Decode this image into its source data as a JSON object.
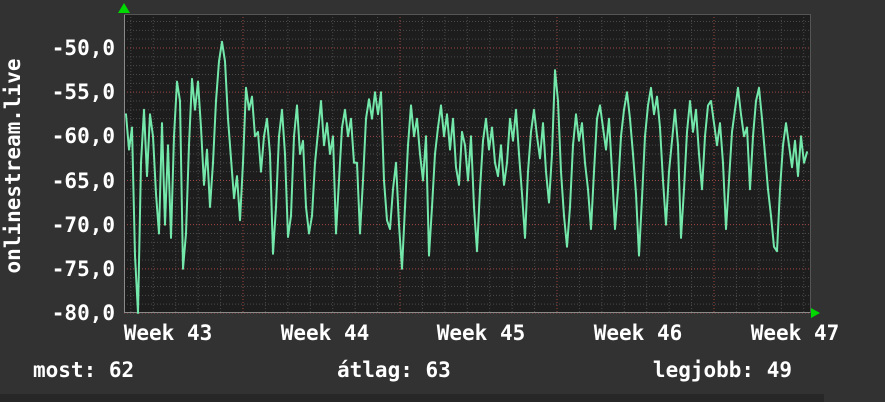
{
  "chart_data": {
    "type": "line",
    "title": "onlinestream.live",
    "ylim": [
      -80,
      -46.15
    ],
    "y_ticks": [
      {
        "value": -50,
        "label": "-50,0"
      },
      {
        "value": -55,
        "label": "-55,0"
      },
      {
        "value": -60,
        "label": "-60,0"
      },
      {
        "value": -65,
        "label": "-65,0"
      },
      {
        "value": -70,
        "label": "-70,0"
      },
      {
        "value": -75,
        "label": "-75,0"
      },
      {
        "value": -80,
        "label": "-80,0"
      }
    ],
    "x_ticks": [
      {
        "label": "Week 43"
      },
      {
        "label": "Week 44"
      },
      {
        "label": "Week 45"
      },
      {
        "label": "Week 46"
      },
      {
        "label": "Week 47"
      }
    ],
    "grid": {
      "minor_y_step": 1,
      "major_y_step": 5,
      "minor_x_per_week": 7
    },
    "series": [
      {
        "name": "onlinestream.live",
        "values": [
          -57.5,
          -61.5,
          -59,
          -73.5,
          -80,
          -63,
          -57,
          -64.5,
          -57.5,
          -60,
          -66.5,
          -71,
          -58.5,
          -70,
          -61,
          -71.5,
          -60,
          -53.8,
          -56,
          -75,
          -71,
          -61,
          -53.5,
          -57,
          -53.8,
          -59,
          -65.5,
          -61.5,
          -68,
          -63,
          -56,
          -51.5,
          -49.3,
          -51.5,
          -58,
          -62.5,
          -67,
          -64.5,
          -69.5,
          -63,
          -54.5,
          -57,
          -55.5,
          -60,
          -59.5,
          -64,
          -60,
          -58,
          -62,
          -73.3,
          -68,
          -60,
          -57,
          -62,
          -71.4,
          -69,
          -60,
          -56.5,
          -62,
          -60.5,
          -68,
          -71,
          -69,
          -63,
          -59.5,
          -56,
          -61,
          -58.5,
          -62,
          -60,
          -71,
          -65,
          -59,
          -57,
          -60,
          -58,
          -63,
          -63,
          -71,
          -65,
          -58,
          -55.8,
          -58,
          -55,
          -57.5,
          -55,
          -65,
          -69.5,
          -70.5,
          -66,
          -63,
          -70,
          -75,
          -68,
          -61,
          -56.5,
          -60,
          -58,
          -62,
          -65,
          -60,
          -73.5,
          -68,
          -62,
          -59,
          -56.5,
          -60,
          -57.5,
          -61.5,
          -58,
          -63.5,
          -65.5,
          -59.5,
          -61,
          -65,
          -60,
          -68,
          -73,
          -66,
          -60.5,
          -58,
          -61.5,
          -59,
          -63,
          -64.5,
          -61,
          -65.5,
          -63,
          -58,
          -60.5,
          -57,
          -62,
          -66.5,
          -71.5,
          -64,
          -59.5,
          -57,
          -60,
          -62.5,
          -58.5,
          -64,
          -67.5,
          -62,
          -52.5,
          -56,
          -64,
          -69,
          -72.5,
          -68,
          -61,
          -57.5,
          -60.5,
          -58.5,
          -63,
          -66,
          -70.5,
          -64,
          -58,
          -56.5,
          -59,
          -61.5,
          -58,
          -64,
          -70.5,
          -66,
          -60,
          -57,
          -55,
          -58,
          -62,
          -66.5,
          -73.5,
          -67,
          -60,
          -56.5,
          -54.5,
          -57.5,
          -55.5,
          -59,
          -65,
          -70,
          -64,
          -60.5,
          -57,
          -61,
          -71.5,
          -66,
          -59.5,
          -56,
          -59.5,
          -57,
          -62,
          -66,
          -60,
          -56.5,
          -56,
          -58.5,
          -61,
          -58.5,
          -63,
          -70.5,
          -65,
          -59.5,
          -57,
          -54.5,
          -57.5,
          -60,
          -59,
          -66,
          -60,
          -56,
          -54.5,
          -58,
          -62,
          -66,
          -69,
          -72.5,
          -73,
          -66,
          -61,
          -58.5,
          -61,
          -63.5,
          -60.5,
          -64.5,
          -60,
          -63,
          -61.8
        ]
      }
    ],
    "colors": {
      "line": "#73e8aa",
      "grid_minor": "#4a4a4a",
      "grid_major": "#a04545",
      "axis": "#8a8a8a",
      "frame": "#555555",
      "arrow": "#00d900",
      "plot_bg": "#1d1d1d",
      "page_bg": "#323232",
      "footer_strip": "#272727",
      "text": "#ffffff"
    }
  },
  "footer": {
    "stats": [
      {
        "name": "most",
        "text": "most: 62"
      },
      {
        "name": "átlag",
        "text": "átlag: 63"
      },
      {
        "name": "legjobb",
        "text": "legjobb: 49"
      }
    ]
  }
}
